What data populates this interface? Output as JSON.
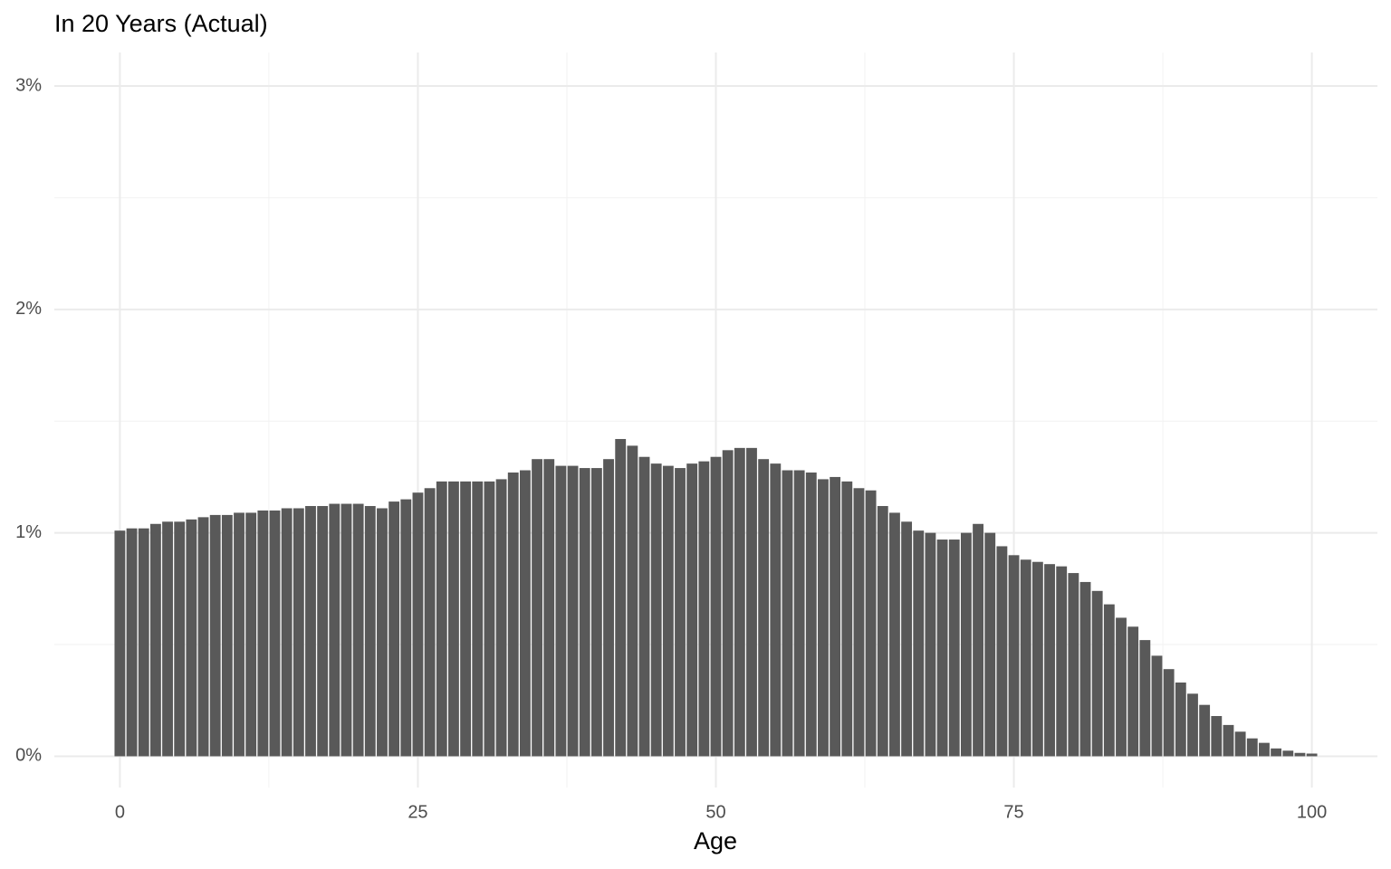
{
  "chart_data": {
    "type": "bar",
    "title": "In 20 Years (Actual)",
    "x_label": "Age",
    "x": [
      0,
      1,
      2,
      3,
      4,
      5,
      6,
      7,
      8,
      9,
      10,
      11,
      12,
      13,
      14,
      15,
      16,
      17,
      18,
      19,
      20,
      21,
      22,
      23,
      24,
      25,
      26,
      27,
      28,
      29,
      30,
      31,
      32,
      33,
      34,
      35,
      36,
      37,
      38,
      39,
      40,
      41,
      42,
      43,
      44,
      45,
      46,
      47,
      48,
      49,
      50,
      51,
      52,
      53,
      54,
      55,
      56,
      57,
      58,
      59,
      60,
      61,
      62,
      63,
      64,
      65,
      66,
      67,
      68,
      69,
      70,
      71,
      72,
      73,
      74,
      75,
      76,
      77,
      78,
      79,
      80,
      81,
      82,
      83,
      84,
      85,
      86,
      87,
      88,
      89,
      90,
      91,
      92,
      93,
      94,
      95,
      96,
      97,
      98,
      99,
      100
    ],
    "values": [
      1.01,
      1.02,
      1.02,
      1.04,
      1.05,
      1.05,
      1.06,
      1.07,
      1.08,
      1.08,
      1.09,
      1.09,
      1.1,
      1.1,
      1.11,
      1.11,
      1.12,
      1.12,
      1.13,
      1.13,
      1.13,
      1.12,
      1.11,
      1.14,
      1.15,
      1.18,
      1.2,
      1.23,
      1.23,
      1.23,
      1.23,
      1.23,
      1.24,
      1.27,
      1.28,
      1.33,
      1.33,
      1.3,
      1.3,
      1.29,
      1.29,
      1.33,
      1.42,
      1.39,
      1.34,
      1.31,
      1.3,
      1.29,
      1.31,
      1.32,
      1.34,
      1.37,
      1.38,
      1.38,
      1.33,
      1.31,
      1.28,
      1.28,
      1.27,
      1.24,
      1.25,
      1.23,
      1.2,
      1.19,
      1.12,
      1.09,
      1.05,
      1.01,
      1.0,
      0.97,
      0.97,
      1.0,
      1.04,
      1.0,
      0.94,
      0.9,
      0.88,
      0.87,
      0.86,
      0.85,
      0.82,
      0.78,
      0.74,
      0.68,
      0.62,
      0.58,
      0.52,
      0.45,
      0.39,
      0.33,
      0.28,
      0.23,
      0.18,
      0.14,
      0.11,
      0.08,
      0.06,
      0.035,
      0.025,
      0.015,
      0.012
    ],
    "color": "#595959",
    "xlim": [
      -5.5,
      105.5
    ],
    "xticks": [
      0,
      25,
      50,
      75,
      100
    ],
    "ylim": [
      -0.14,
      3.15
    ],
    "yticks": [
      {
        "value": 0,
        "label": "0%"
      },
      {
        "value": 1,
        "label": "1%"
      },
      {
        "value": 2,
        "label": "2%"
      },
      {
        "value": 3,
        "label": "3%"
      }
    ],
    "grid": true,
    "minor_grid": true
  }
}
